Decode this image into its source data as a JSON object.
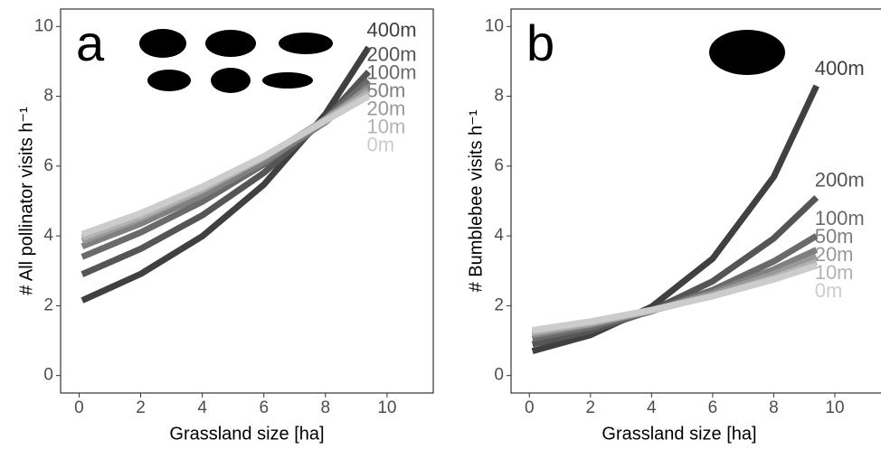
{
  "chart_data": [
    {
      "type": "line",
      "panel_label": "a",
      "x_label": "Grassland size [ha]",
      "y_label": "# All pollinator visits h⁻¹",
      "x": [
        0.1,
        2,
        4,
        6,
        8,
        9.4
      ],
      "xlim": [
        -0.6,
        11.5
      ],
      "ylim": [
        -0.5,
        10.5
      ],
      "xticks": [
        0,
        2,
        4,
        6,
        8,
        10
      ],
      "yticks": [
        0,
        2,
        4,
        6,
        8,
        10
      ],
      "series": [
        {
          "name": "400m",
          "color": "#404040",
          "values": [
            2.15,
            2.91,
            3.99,
            5.47,
            7.49,
            9.4
          ]
        },
        {
          "name": "200m",
          "color": "#555555",
          "values": [
            2.9,
            3.63,
            4.59,
            5.81,
            7.35,
            8.7
          ]
        },
        {
          "name": "100m",
          "color": "#6a6a6a",
          "values": [
            3.4,
            4.1,
            4.98,
            6.05,
            7.36,
            8.45
          ]
        },
        {
          "name": "50m",
          "color": "#808080",
          "values": [
            3.7,
            4.35,
            5.16,
            6.12,
            7.26,
            8.3
          ]
        },
        {
          "name": "20m",
          "color": "#999999",
          "values": [
            3.85,
            4.5,
            5.3,
            6.24,
            7.35,
            8.2
          ]
        },
        {
          "name": "10m",
          "color": "#b3b3b3",
          "values": [
            3.95,
            4.56,
            5.34,
            6.26,
            7.32,
            8.1
          ]
        },
        {
          "name": "0m",
          "color": "#cccccc",
          "values": [
            4.05,
            4.65,
            5.41,
            6.28,
            7.3,
            8.0
          ]
        }
      ]
    },
    {
      "type": "line",
      "panel_label": "b",
      "x_label": "Grassland size [ha]",
      "y_label": "# Bumblebee visits h⁻¹",
      "x": [
        0.1,
        2,
        4,
        6,
        8,
        9.4
      ],
      "xlim": [
        -0.6,
        11.6
      ],
      "ylim": [
        -0.5,
        10.5
      ],
      "xticks": [
        0,
        2,
        4,
        6,
        8,
        10
      ],
      "yticks": [
        0,
        2,
        4,
        6,
        8,
        10
      ],
      "series": [
        {
          "name": "400m",
          "color": "#404040",
          "values": [
            0.7,
            1.16,
            1.97,
            3.35,
            5.69,
            8.3
          ]
        },
        {
          "name": "200m",
          "color": "#555555",
          "values": [
            0.9,
            1.28,
            1.86,
            2.7,
            3.93,
            5.1
          ]
        },
        {
          "name": "100m",
          "color": "#6a6a6a",
          "values": [
            1.05,
            1.38,
            1.84,
            2.45,
            3.27,
            4.0
          ]
        },
        {
          "name": "50m",
          "color": "#808080",
          "values": [
            1.15,
            1.45,
            1.86,
            2.38,
            3.04,
            3.6
          ]
        },
        {
          "name": "20m",
          "color": "#999999",
          "values": [
            1.2,
            1.48,
            1.86,
            2.33,
            2.91,
            3.4
          ]
        },
        {
          "name": "10m",
          "color": "#b3b3b3",
          "values": [
            1.25,
            1.51,
            1.86,
            2.28,
            2.8,
            3.25
          ]
        },
        {
          "name": "0m",
          "color": "#cccccc",
          "values": [
            1.3,
            1.55,
            1.88,
            2.27,
            2.75,
            3.15
          ]
        }
      ]
    }
  ]
}
